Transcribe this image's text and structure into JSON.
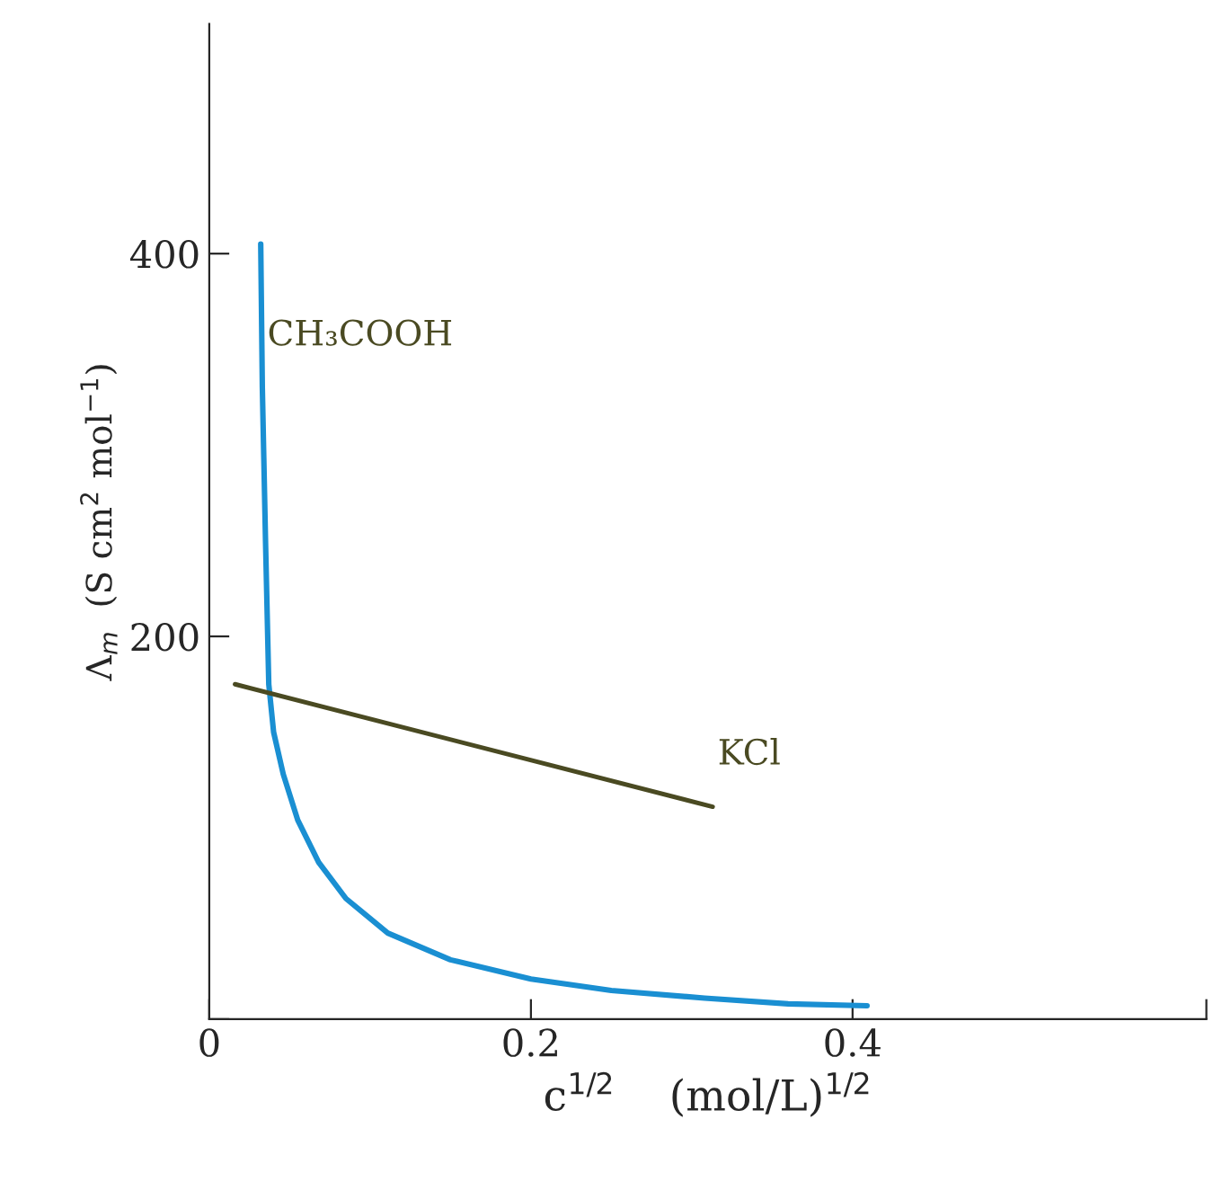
{
  "chart_data": {
    "type": "line",
    "xlabel": "c$^{1/2}$    (mol/L)$^{1/2}$",
    "ylabel": "Λ$_{m}$  (S cm$^{2}$ mol$^{−1}$)",
    "series": [
      {
        "color": "#1a8fd2",
        "x": [
          0.032,
          0.033,
          0.035,
          0.037,
          0.04,
          0.046,
          0.055,
          0.068,
          0.085,
          0.111,
          0.15,
          0.2,
          0.25,
          0.308,
          0.36,
          0.409
        ],
        "values": [
          405,
          330,
          249,
          175,
          150,
          128,
          104,
          82,
          63,
          45,
          31,
          21,
          15,
          11,
          8,
          7
        ]
      },
      {
        "color": "#4a4a22",
        "x": [
          0.016,
          0.313
        ],
        "values": [
          175,
          111
        ]
      }
    ],
    "annotations": [
      {
        "text": "CH₃COOH",
        "x": 0.033,
        "y": 330
      },
      {
        "text": "KCl",
        "x": 0.313,
        "y": 111
      }
    ],
    "xlim": [
      0,
      0.62
    ],
    "ylim": [
      0,
      520
    ],
    "xticks": [
      0,
      0.2,
      0.4,
      {
        "value": 0.62,
        "label": null
      }
    ],
    "yticks": [
      {
        "value": 0,
        "label": null
      },
      200,
      400
    ],
    "grid": false,
    "legend": false,
    "marker": "none",
    "line_style": "solid"
  }
}
